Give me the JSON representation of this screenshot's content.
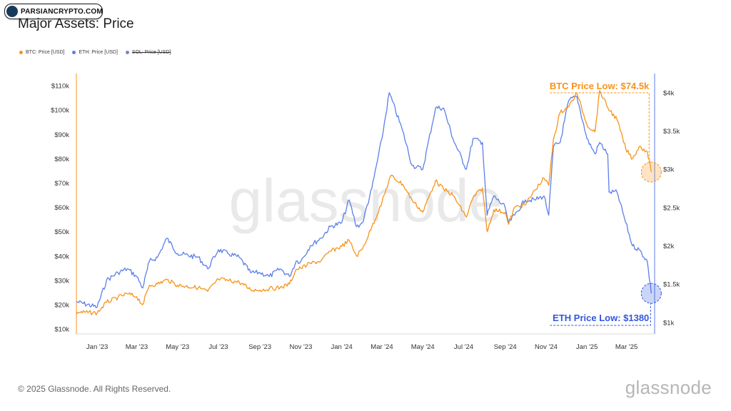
{
  "badge": {
    "text": "PARSIANCRYPTO.COM"
  },
  "footer": {
    "copyright": "© 2025 Glassnode. All Rights Reserved.",
    "brand": "glassnode"
  },
  "watermark": "glassnode",
  "colors": {
    "btc": "#f7931a",
    "eth": "#5c7fe8",
    "sol": "#6f86d9",
    "annotation_btc": "#f7931a",
    "annotation_eth": "#3157e0"
  },
  "chart_data": {
    "type": "line",
    "title": "Major Assets: Price",
    "legend_placement": "top-left",
    "grid": false,
    "x_ticks": [
      "Jan '23",
      "Mar '23",
      "May '23",
      "Jul '23",
      "Sep '23",
      "Nov '23",
      "Jan '24",
      "Mar '24",
      "May '24",
      "Jul '24",
      "Sep '24",
      "Nov '24",
      "Jan '25",
      "Mar '25"
    ],
    "xlim": [
      "2022-12-01",
      "2025-04-12"
    ],
    "y_left": {
      "ylim": [
        8000,
        115000
      ],
      "ticks": [
        10000,
        20000,
        30000,
        40000,
        50000,
        60000,
        70000,
        80000,
        90000,
        100000,
        110000
      ],
      "tick_labels": [
        "$10k",
        "$20k",
        "$30k",
        "$40k",
        "$50k",
        "$60k",
        "$70k",
        "$80k",
        "$90k",
        "$100k",
        "$110k"
      ]
    },
    "y_right": {
      "ylim": [
        850,
        4250
      ],
      "ticks": [
        1000,
        1500,
        2000,
        2500,
        3000,
        3500,
        4000
      ],
      "tick_labels": [
        "$1k",
        "$1.5k",
        "$2k",
        "$2.5k",
        "$3k",
        "$3.5k",
        "$4k"
      ]
    },
    "series": [
      {
        "name": "BTC: Price [USD]",
        "axis": "left",
        "visible": true,
        "x": [
          "2022-12-01",
          "2023-01-01",
          "2023-01-15",
          "2023-02-01",
          "2023-02-15",
          "2023-03-01",
          "2023-03-10",
          "2023-03-20",
          "2023-04-01",
          "2023-04-15",
          "2023-05-01",
          "2023-06-01",
          "2023-06-15",
          "2023-07-01",
          "2023-07-15",
          "2023-08-01",
          "2023-08-18",
          "2023-09-01",
          "2023-09-15",
          "2023-10-01",
          "2023-10-15",
          "2023-10-25",
          "2023-11-01",
          "2023-11-15",
          "2023-12-01",
          "2023-12-15",
          "2024-01-01",
          "2024-01-12",
          "2024-01-23",
          "2024-02-01",
          "2024-02-15",
          "2024-03-01",
          "2024-03-14",
          "2024-04-01",
          "2024-04-15",
          "2024-05-01",
          "2024-05-20",
          "2024-06-01",
          "2024-06-15",
          "2024-07-05",
          "2024-07-15",
          "2024-07-29",
          "2024-08-05",
          "2024-08-15",
          "2024-09-01",
          "2024-09-06",
          "2024-09-15",
          "2024-10-01",
          "2024-10-15",
          "2024-10-29",
          "2024-11-05",
          "2024-11-12",
          "2024-11-22",
          "2024-12-05",
          "2024-12-17",
          "2025-01-01",
          "2025-01-13",
          "2025-01-20",
          "2025-02-01",
          "2025-02-15",
          "2025-02-28",
          "2025-03-10",
          "2025-03-20",
          "2025-04-01",
          "2025-04-07"
        ],
        "y": [
          17000,
          16600,
          21000,
          23000,
          24500,
          23300,
          20000,
          28000,
          28500,
          30300,
          28000,
          27000,
          25500,
          30500,
          30000,
          29300,
          26200,
          26000,
          26600,
          27000,
          28500,
          34500,
          35000,
          37000,
          38000,
          42000,
          44000,
          46500,
          40000,
          43000,
          52000,
          62000,
          73000,
          69500,
          63000,
          58000,
          71000,
          67500,
          65000,
          56000,
          64000,
          68000,
          50000,
          59000,
          58000,
          53000,
          60000,
          61000,
          67000,
          72000,
          69000,
          88000,
          99000,
          101500,
          107000,
          94000,
          91000,
          108000,
          101000,
          96000,
          84000,
          80000,
          85000,
          83000,
          74500
        ]
      },
      {
        "name": "ETH: Price [USD]",
        "axis": "right",
        "visible": true,
        "x": [
          "2022-12-01",
          "2023-01-01",
          "2023-01-15",
          "2023-02-01",
          "2023-02-15",
          "2023-03-01",
          "2023-03-10",
          "2023-03-20",
          "2023-04-01",
          "2023-04-15",
          "2023-05-01",
          "2023-06-01",
          "2023-06-15",
          "2023-07-01",
          "2023-07-15",
          "2023-08-01",
          "2023-08-18",
          "2023-09-01",
          "2023-09-15",
          "2023-10-01",
          "2023-10-15",
          "2023-10-25",
          "2023-11-01",
          "2023-11-15",
          "2023-12-01",
          "2023-12-15",
          "2024-01-01",
          "2024-01-12",
          "2024-01-23",
          "2024-02-01",
          "2024-02-15",
          "2024-03-01",
          "2024-03-12",
          "2024-04-01",
          "2024-04-15",
          "2024-05-01",
          "2024-05-20",
          "2024-06-01",
          "2024-06-15",
          "2024-07-05",
          "2024-07-15",
          "2024-07-29",
          "2024-08-05",
          "2024-08-15",
          "2024-09-01",
          "2024-09-06",
          "2024-09-15",
          "2024-10-01",
          "2024-10-15",
          "2024-10-29",
          "2024-11-05",
          "2024-11-12",
          "2024-11-22",
          "2024-12-05",
          "2024-12-17",
          "2025-01-01",
          "2025-01-13",
          "2025-01-20",
          "2025-02-01",
          "2025-02-03",
          "2025-02-15",
          "2025-02-28",
          "2025-03-10",
          "2025-03-20",
          "2025-04-01",
          "2025-04-07"
        ],
        "y": [
          1270,
          1200,
          1550,
          1650,
          1700,
          1600,
          1450,
          1800,
          1850,
          2100,
          1900,
          1850,
          1700,
          1950,
          1900,
          1850,
          1650,
          1650,
          1600,
          1700,
          1600,
          1800,
          1800,
          2000,
          2100,
          2250,
          2300,
          2600,
          2250,
          2300,
          2750,
          3400,
          4000,
          3500,
          3050,
          3000,
          3800,
          3800,
          3400,
          3000,
          3400,
          3350,
          2400,
          2650,
          2500,
          2300,
          2400,
          2600,
          2600,
          2650,
          2400,
          3300,
          3350,
          3900,
          3950,
          3400,
          3200,
          3350,
          3200,
          2700,
          2700,
          2300,
          2000,
          1950,
          1800,
          1380
        ]
      },
      {
        "name": "SOL: Price [USD]",
        "axis": "right",
        "visible": false,
        "x": [],
        "y": []
      }
    ],
    "annotations": [
      {
        "series": "BTC: Price [USD]",
        "label": "BTC Price Low: $74.5k",
        "x": "2025-04-07",
        "y": 74500,
        "placement": "top-right"
      },
      {
        "series": "ETH: Price [USD]",
        "label": "ETH Price Low: $1380",
        "x": "2025-04-07",
        "y": 1380,
        "placement": "bottom-right"
      }
    ]
  }
}
